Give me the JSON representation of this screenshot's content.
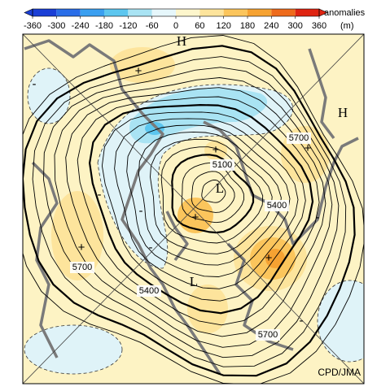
{
  "colorbar": {
    "ticks": [
      -360,
      -300,
      -240,
      -180,
      -120,
      -60,
      0,
      60,
      120,
      180,
      240,
      300,
      360
    ],
    "colors": [
      "#1b3fd6",
      "#2a6ee8",
      "#3a9ff0",
      "#5cc6ef",
      "#a9e3f3",
      "#e6f7fb",
      "#fdf6cc",
      "#fde49c",
      "#fbc55c",
      "#f6a232",
      "#ee6b1c",
      "#df2412"
    ],
    "label": "anomalies",
    "unit": "(m)"
  },
  "highs": [
    "H",
    "H"
  ],
  "lows": [
    "L",
    "L"
  ],
  "contour_labels": [
    5700,
    5100,
    5400,
    5700,
    5400,
    5700
  ],
  "anomaly_signs": [
    "+",
    "+",
    "+",
    "+",
    "+",
    "+",
    "-",
    "-",
    "-",
    "-",
    "-",
    "-"
  ],
  "credit": "CPD/JMA"
}
